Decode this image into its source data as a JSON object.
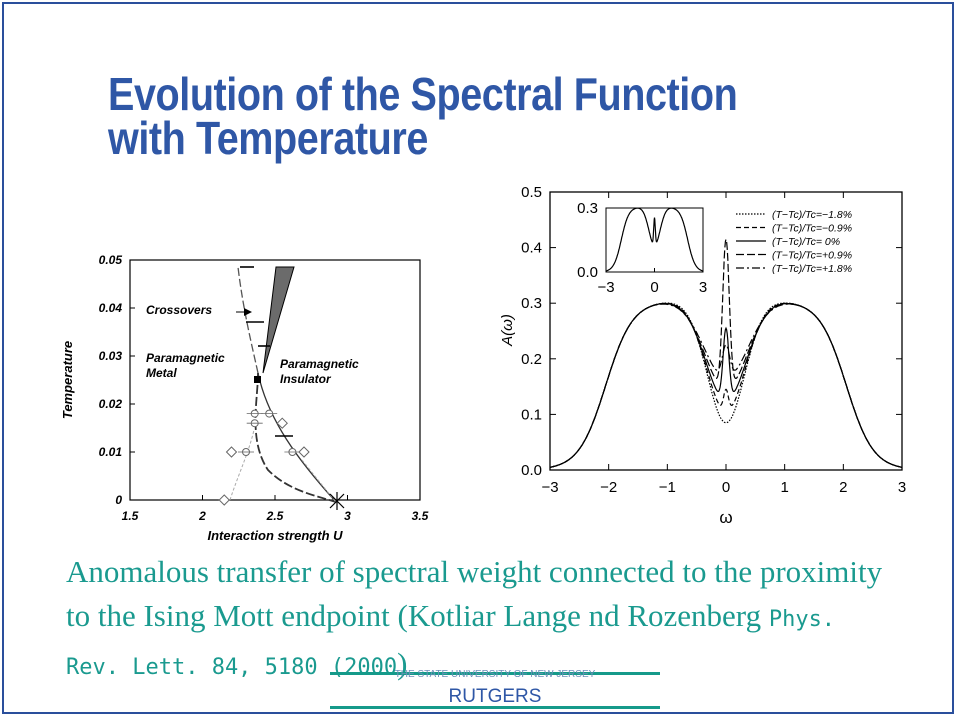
{
  "slide": {
    "title_line1": "Evolution of the Spectral Function",
    "title_line2": "with Temperature",
    "caption_text": "Anomalous transfer of spectral weight connected to the proximity to the Ising Mott endpoint (Kotliar Lange nd Rozenberg ",
    "caption_ref": "Phys. Rev. Lett. 84, 5180 (2000",
    "caption_close": ")",
    "footer_university": "THE STATE UNIVERSITY OF NEW JERSEY",
    "footer_name": "RUTGERS",
    "colors": {
      "title": "#2f57a6",
      "caption": "#1a9a8f",
      "footer_line": "#159a8a"
    }
  },
  "chart_data": [
    {
      "type": "scatter",
      "xlabel": "Interaction strength U",
      "ylabel": "Temperature",
      "xlim": [
        1.5,
        3.5
      ],
      "ylim": [
        0,
        0.05
      ],
      "xticks": [
        "1.5",
        "2",
        "2.5",
        "3",
        "3.5"
      ],
      "yticks": [
        "0",
        "0.01",
        "0.02",
        "0.03",
        "0.04",
        "0.05"
      ],
      "annotations": [
        "Crossovers",
        "Paramagnetic Metal",
        "Paramagnetic Insulator"
      ],
      "critical_point": {
        "x": 2.38,
        "y": 0.026
      },
      "zero_T_point": {
        "x": 2.92,
        "y": 0.0
      },
      "series": [
        {
          "marker": "circle",
          "points": [
            [
              2.36,
              0.018
            ],
            [
              2.46,
              0.018
            ],
            [
              2.36,
              0.016
            ],
            [
              2.3,
              0.01
            ],
            [
              2.62,
              0.01
            ]
          ]
        },
        {
          "marker": "diamond",
          "points": [
            [
              2.15,
              0.0
            ],
            [
              2.2,
              0.01
            ],
            [
              2.7,
              0.01
            ],
            [
              2.55,
              0.016
            ]
          ]
        }
      ]
    },
    {
      "type": "line",
      "xlabel": "ω",
      "ylabel": "A(ω)",
      "xlim": [
        -3,
        3
      ],
      "ylim": [
        0,
        0.5
      ],
      "xticks": [
        "−3",
        "−2",
        "−1",
        "0",
        "1",
        "2",
        "3"
      ],
      "yticks": [
        "0.0",
        "0.1",
        "0.2",
        "0.3",
        "0.4",
        "0.5"
      ],
      "legend_position": "top-right",
      "series": [
        {
          "name": "(T−Tc)/Tc=−1.8%",
          "peak_height": 0.09
        },
        {
          "name": "(T−Tc)/Tc=−0.9%",
          "peak_height": 0.14
        },
        {
          "name": "(T−Tc)/Tc= 0%",
          "peak_height": 0.23
        },
        {
          "name": "(T−Tc)/Tc=+0.9%",
          "peak_height": 0.37
        },
        {
          "name": "(T−Tc)/Tc=+1.8%",
          "peak_height": 0.16
        }
      ],
      "inset": {
        "xlim": [
          -3,
          3
        ],
        "ylim": [
          0,
          0.3
        ],
        "xticks": [
          "−3",
          "0",
          "3"
        ],
        "yticks": [
          "0.0",
          "0.3"
        ]
      }
    }
  ]
}
